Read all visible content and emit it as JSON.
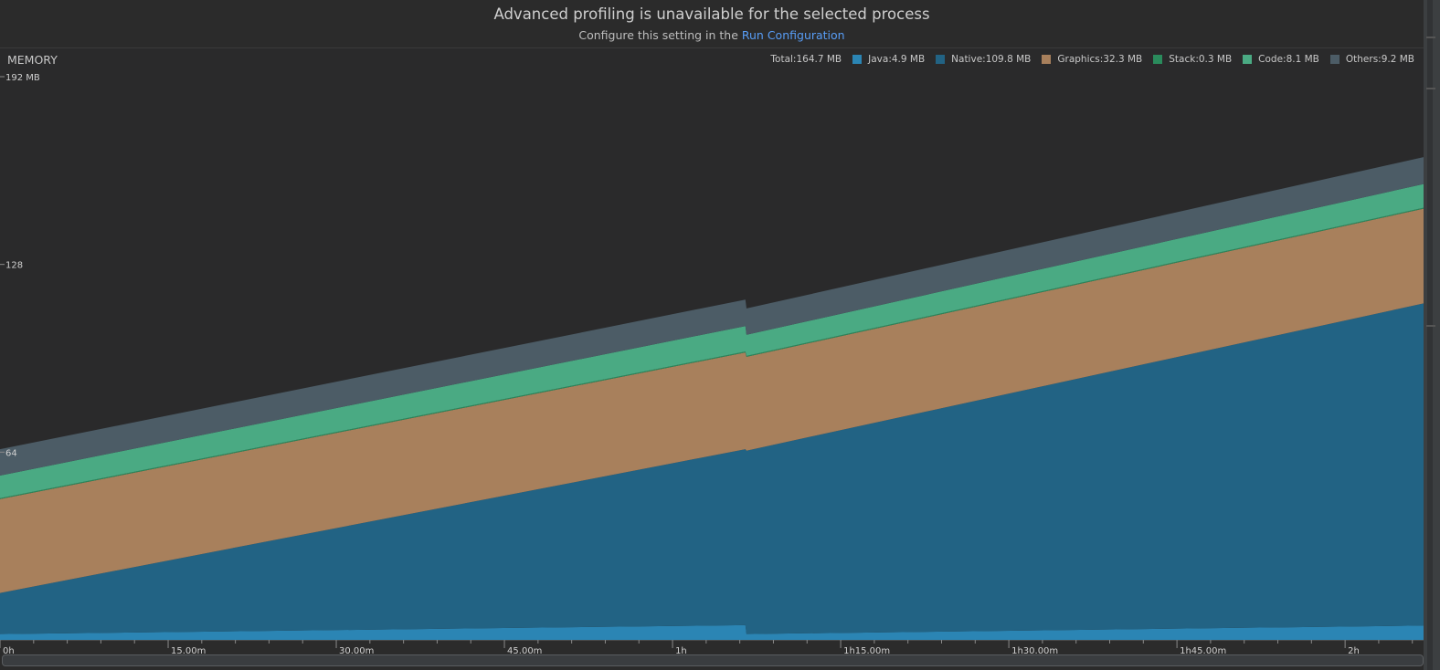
{
  "banner": {
    "title": "Advanced profiling is unavailable for the selected process",
    "subtitle_prefix": "Configure this setting in the",
    "subtitle_link": "Run Configuration"
  },
  "memory": {
    "title": "MEMORY",
    "legend": {
      "total": "Total:164.7 MB",
      "items": [
        {
          "label": "Java:4.9 MB",
          "color": "#2b85b4"
        },
        {
          "label": "Native:109.8 MB",
          "color": "#226384"
        },
        {
          "label": "Graphics:32.3 MB",
          "color": "#a8805c"
        },
        {
          "label": "Stack:0.3 MB",
          "color": "#2a8b5c"
        },
        {
          "label": "Code:8.1 MB",
          "color": "#4aaa83"
        },
        {
          "label": "Others:9.2 MB",
          "color": "#4c5c66"
        }
      ]
    }
  },
  "chart_data": {
    "type": "area",
    "stacked": true,
    "title": "MEMORY",
    "y_tick_labels": [
      "192 MB",
      "128",
      "64"
    ],
    "y_ticks": [
      192,
      128,
      64
    ],
    "ylim": [
      0,
      192
    ],
    "x_unit": "minutes",
    "x_tick_labels": [
      "0h",
      "15.00m",
      "30.00m",
      "45.00m",
      "1h",
      "1h15.00m",
      "1h30.00m",
      "1h45.00m",
      "2h"
    ],
    "x_ticks": [
      0,
      15,
      30,
      45,
      60,
      75,
      90,
      105,
      120
    ],
    "xlim": [
      0,
      127
    ],
    "x": [
      0,
      66.5,
      66.6,
      127
    ],
    "series": [
      {
        "name": "Java",
        "color": "#2b85b4",
        "values": [
          2,
          5,
          2,
          4.9
        ]
      },
      {
        "name": "Native",
        "color": "#226384",
        "values": [
          14,
          60,
          62.5,
          109.8
        ]
      },
      {
        "name": "Graphics",
        "color": "#a8805c",
        "values": [
          32,
          33,
          32,
          32.3
        ]
      },
      {
        "name": "Stack",
        "color": "#2a8b5c",
        "values": [
          0.3,
          0.3,
          0.3,
          0.3
        ]
      },
      {
        "name": "Code",
        "color": "#4aaa83",
        "values": [
          7.7,
          8.7,
          7.2,
          8.1
        ]
      },
      {
        "name": "Others",
        "color": "#4c5c66",
        "values": [
          9,
          9,
          9,
          9.2
        ]
      }
    ]
  }
}
